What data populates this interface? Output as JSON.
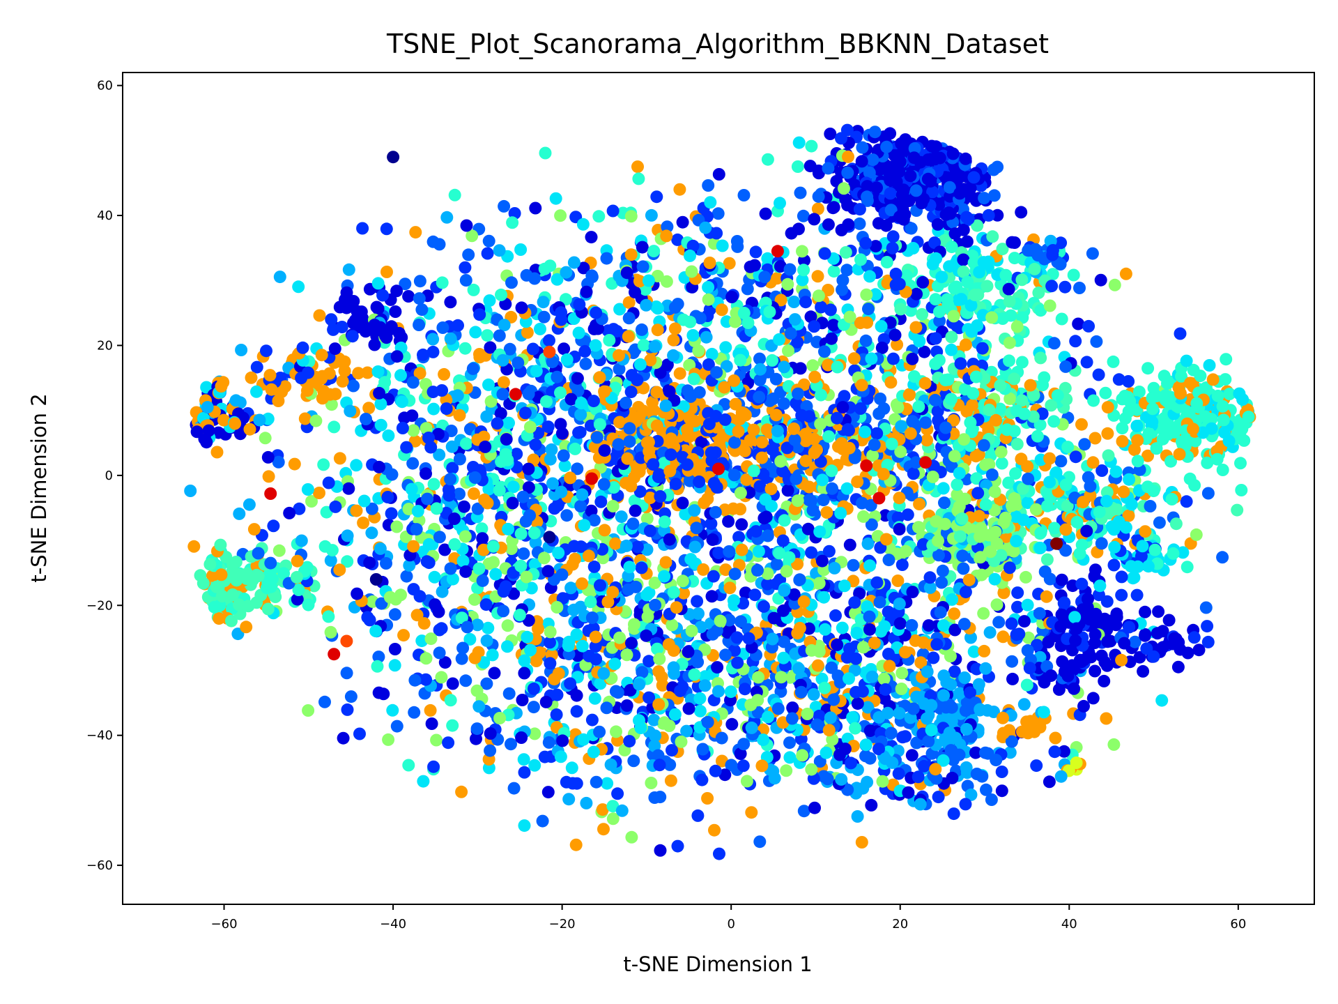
{
  "chart_data": {
    "type": "scatter",
    "title": "TSNE_Plot_Scanorama_Algorithm_BBKNN_Dataset",
    "xlabel": "t-SNE Dimension 1",
    "ylabel": "t-SNE Dimension 2",
    "xlim": [
      -72,
      69
    ],
    "ylim": [
      -66,
      62
    ],
    "xticks": [
      -60,
      -40,
      -20,
      0,
      20,
      40,
      60
    ],
    "yticks": [
      -60,
      -40,
      -20,
      0,
      20,
      40,
      60
    ],
    "xtick_labels": [
      "−60",
      "−40",
      "−20",
      "0",
      "20",
      "40",
      "60"
    ],
    "ytick_labels": [
      "−60",
      "−40",
      "−20",
      "0",
      "20",
      "40",
      "60"
    ],
    "grid": false,
    "legend": "none",
    "colormap": "jet",
    "palette": {
      "navy": "#00008f",
      "blue": "#0000df",
      "mid_blue": "#0031ff",
      "azure": "#0060ff",
      "sky": "#00b0ff",
      "cyan": "#00e4f8",
      "aqua": "#26ffd0",
      "mint": "#40ffb8",
      "light_green": "#8cff6a",
      "yellow_green": "#d8ff1e",
      "orange": "#ff9c00",
      "red_orange": "#ff4a00",
      "red": "#df0000",
      "dark_red": "#800000"
    },
    "clusters": [
      {
        "x": -4,
        "y": -8,
        "sx": 22,
        "sy": 22,
        "n": 1500,
        "colors": [
          "azure",
          "azure",
          "mid_blue",
          "mid_blue",
          "blue",
          "sky",
          "cyan",
          "orange",
          "light_green",
          "aqua"
        ]
      },
      {
        "x": -20,
        "y": 15,
        "sx": 13,
        "sy": 13,
        "n": 420,
        "colors": [
          "mid_blue",
          "azure",
          "blue",
          "cyan",
          "aqua",
          "orange",
          "sky"
        ]
      },
      {
        "x": 14,
        "y": -30,
        "sx": 11,
        "sy": 9,
        "n": 380,
        "colors": [
          "azure",
          "mid_blue",
          "blue",
          "sky",
          "orange",
          "cyan",
          "light_green"
        ]
      },
      {
        "x": 22,
        "y": 46,
        "sx": 5,
        "sy": 4.5,
        "n": 420,
        "colors": [
          "blue",
          "blue",
          "blue",
          "mid_blue",
          "azure"
        ]
      },
      {
        "x": 5,
        "y": 5,
        "sx": 11,
        "sy": 5,
        "n": 300,
        "colors": [
          "orange",
          "orange",
          "orange",
          "azure",
          "mid_blue"
        ]
      },
      {
        "x": -6,
        "y": 5,
        "sx": 5,
        "sy": 4,
        "n": 140,
        "colors": [
          "orange",
          "orange",
          "mid_blue"
        ]
      },
      {
        "x": 55,
        "y": 9,
        "sx": 5,
        "sy": 4,
        "n": 240,
        "colors": [
          "aqua",
          "aqua",
          "aqua",
          "orange",
          "cyan"
        ]
      },
      {
        "x": 42,
        "y": -5,
        "sx": 6,
        "sy": 4,
        "n": 160,
        "colors": [
          "aqua",
          "mint",
          "orange",
          "cyan",
          "azure"
        ]
      },
      {
        "x": 29,
        "y": 29,
        "sx": 5,
        "sy": 4,
        "n": 140,
        "colors": [
          "aqua",
          "aqua",
          "mint",
          "cyan"
        ]
      },
      {
        "x": 31,
        "y": 12,
        "sx": 5,
        "sy": 4,
        "n": 110,
        "colors": [
          "aqua",
          "aqua",
          "mint",
          "orange"
        ]
      },
      {
        "x": -58,
        "y": -17,
        "sx": 4,
        "sy": 3,
        "n": 150,
        "colors": [
          "mint",
          "mint",
          "aqua",
          "orange"
        ]
      },
      {
        "x": -61,
        "y": 10,
        "sx": 2.5,
        "sy": 3.5,
        "n": 90,
        "colors": [
          "blue",
          "blue",
          "sky",
          "orange",
          "cyan"
        ]
      },
      {
        "x": 29,
        "y": -10,
        "sx": 3.2,
        "sy": 3,
        "n": 110,
        "colors": [
          "light_green",
          "light_green",
          "mint"
        ]
      },
      {
        "x": 42,
        "y": -24,
        "sx": 2.6,
        "sy": 4.5,
        "n": 120,
        "colors": [
          "blue",
          "blue",
          "mid_blue"
        ]
      },
      {
        "x": 26,
        "y": -37,
        "sx": 3.5,
        "sy": 3,
        "n": 100,
        "colors": [
          "sky",
          "sky",
          "azure"
        ]
      },
      {
        "x": 22,
        "y": -45,
        "sx": 8,
        "sy": 4,
        "n": 90,
        "colors": [
          "azure",
          "mid_blue",
          "blue",
          "sky"
        ]
      },
      {
        "x": -50,
        "y": 15,
        "sx": 3,
        "sy": 2,
        "n": 50,
        "colors": [
          "orange",
          "orange",
          "mid_blue"
        ]
      },
      {
        "x": -42,
        "y": 24,
        "sx": 2.5,
        "sy": 2.5,
        "n": 40,
        "colors": [
          "blue",
          "blue"
        ]
      },
      {
        "x": 51,
        "y": -26,
        "sx": 2.5,
        "sy": 2,
        "n": 35,
        "colors": [
          "blue",
          "blue",
          "mid_blue"
        ]
      },
      {
        "x": 49,
        "y": -13,
        "sx": 2,
        "sy": 2,
        "n": 30,
        "colors": [
          "cyan",
          "cyan",
          "mid_blue"
        ]
      },
      {
        "x": 37,
        "y": 34,
        "sx": 1.5,
        "sy": 1.2,
        "n": 22,
        "colors": [
          "sky",
          "azure",
          "mid_blue"
        ]
      },
      {
        "x": 35,
        "y": -39,
        "sx": 1.5,
        "sy": 1,
        "n": 16,
        "colors": [
          "orange"
        ]
      },
      {
        "x": -39.5,
        "y": 49,
        "sx": 1.2,
        "sy": 0.8,
        "n": 16,
        "colors": [
          "yellow_green",
          "light_green",
          "navy"
        ]
      },
      {
        "x": 41,
        "y": -45,
        "sx": 0.9,
        "sy": 0.6,
        "n": 8,
        "colors": [
          "yellow_green",
          "orange"
        ]
      },
      {
        "x": -15,
        "y": -30,
        "sx": 10,
        "sy": 12,
        "n": 300,
        "colors": [
          "mid_blue",
          "azure",
          "blue",
          "sky",
          "orange",
          "light_green",
          "cyan"
        ]
      },
      {
        "x": 10,
        "y": 25,
        "sx": 12,
        "sy": 10,
        "n": 300,
        "colors": [
          "mid_blue",
          "azure",
          "blue",
          "cyan",
          "aqua",
          "light_green",
          "orange"
        ]
      },
      {
        "x": 30,
        "y": 0,
        "sx": 10,
        "sy": 12,
        "n": 260,
        "colors": [
          "mid_blue",
          "azure",
          "cyan",
          "aqua",
          "orange",
          "light_green"
        ]
      },
      {
        "x": -35,
        "y": -5,
        "sx": 8,
        "sy": 14,
        "n": 260,
        "colors": [
          "mid_blue",
          "azure",
          "blue",
          "cyan",
          "orange",
          "light_green",
          "aqua"
        ]
      }
    ],
    "highlights": [
      {
        "x": -54.5,
        "y": -2.8,
        "color": "red"
      },
      {
        "x": -47,
        "y": -27.5,
        "color": "red"
      },
      {
        "x": -45.5,
        "y": -25.5,
        "color": "red_orange"
      },
      {
        "x": -16.5,
        "y": -0.5,
        "color": "red"
      },
      {
        "x": -1.5,
        "y": 1,
        "color": "red"
      },
      {
        "x": 16,
        "y": 1.5,
        "color": "red"
      },
      {
        "x": 23,
        "y": 2,
        "color": "red"
      },
      {
        "x": 17.5,
        "y": -3.5,
        "color": "red"
      },
      {
        "x": -25.5,
        "y": 12.5,
        "color": "red"
      },
      {
        "x": 5.5,
        "y": 34.5,
        "color": "red"
      },
      {
        "x": 38.5,
        "y": -10.5,
        "color": "dark_red"
      },
      {
        "x": -42,
        "y": -16,
        "color": "navy"
      },
      {
        "x": -21.5,
        "y": 19,
        "color": "red_orange"
      },
      {
        "x": -40,
        "y": 49,
        "color": "navy"
      },
      {
        "x": -21.5,
        "y": -9.5,
        "color": "navy"
      }
    ],
    "seed": 7
  }
}
